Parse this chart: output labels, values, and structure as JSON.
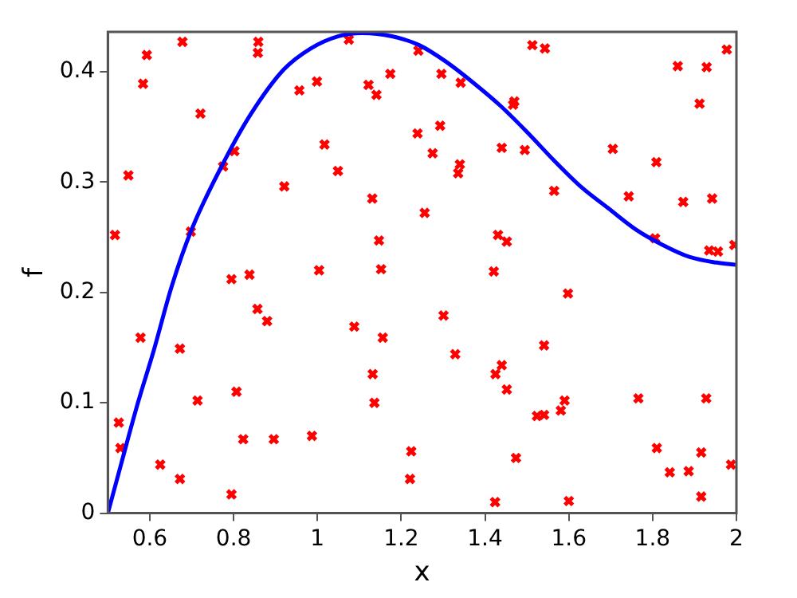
{
  "chart_data": {
    "type": "scatter",
    "xlabel": "x",
    "ylabel": "f",
    "xlim": [
      0.5,
      2
    ],
    "ylim": [
      0,
      0.436
    ],
    "xticks": [
      0.6,
      0.8,
      1,
      1.2,
      1.4,
      1.6,
      1.8,
      2
    ],
    "yticks": [
      0,
      0.1,
      0.2,
      0.3,
      0.4
    ],
    "grid": false,
    "legend": false,
    "series": [
      {
        "type": "line",
        "color": "#0000ff",
        "marker": "none",
        "line_style": "solid",
        "x": [
          0.5,
          0.532,
          0.571,
          0.61,
          0.652,
          0.7,
          0.778,
          0.842,
          0.92,
          0.984,
          1.049,
          1.107,
          1.178,
          1.243,
          1.307,
          1.372,
          1.437,
          1.501,
          1.566,
          1.631,
          1.695,
          1.76,
          1.824,
          1.889,
          1.953,
          1.999
        ],
        "values": [
          0,
          0.045,
          0.099,
          0.148,
          0.205,
          0.257,
          0.319,
          0.362,
          0.402,
          0.421,
          0.432,
          0.435,
          0.432,
          0.424,
          0.409,
          0.39,
          0.369,
          0.345,
          0.319,
          0.295,
          0.276,
          0.257,
          0.243,
          0.232,
          0.227,
          0.225
        ]
      },
      {
        "type": "scatter",
        "color": "#ff0000",
        "marker": "cross",
        "x": [
          0.517,
          0.549,
          0.584,
          0.593,
          0.678,
          0.721,
          0.698,
          0.775,
          0.802,
          0.795,
          0.838,
          0.859,
          0.858,
          0.921,
          0.957,
          0.999,
          1.004,
          1.017,
          1.049,
          1.075,
          1.122,
          1.141,
          1.174,
          1.131,
          1.147,
          1.152,
          1.239,
          1.241,
          1.256,
          1.296,
          1.342,
          1.293,
          1.275,
          1.34,
          1.336,
          1.513,
          1.543,
          1.47,
          1.467,
          1.44,
          1.495,
          1.565,
          1.431,
          1.452,
          1.421,
          1.705,
          1.743,
          1.809,
          1.806,
          1.86,
          1.929,
          1.912,
          1.873,
          1.942,
          1.935,
          1.956,
          1.977,
          1.995,
          0.578,
          0.526,
          0.53,
          0.625,
          0.672,
          0.672,
          0.714,
          0.857,
          0.88,
          0.807,
          0.823,
          0.896,
          0.795,
          0.987,
          1.088,
          1.156,
          1.132,
          1.136,
          1.224,
          1.221,
          1.598,
          1.301,
          1.329,
          1.541,
          1.44,
          1.425,
          1.452,
          1.59,
          1.581,
          1.524,
          1.541,
          1.766,
          1.928,
          1.81,
          1.916,
          1.841,
          1.886,
          1.987,
          1.916,
          1.474,
          1.424,
          1.6
        ],
        "values": [
          0.252,
          0.306,
          0.389,
          0.415,
          0.427,
          0.362,
          0.255,
          0.314,
          0.328,
          0.212,
          0.216,
          0.427,
          0.417,
          0.296,
          0.383,
          0.391,
          0.22,
          0.334,
          0.31,
          0.429,
          0.388,
          0.379,
          0.398,
          0.285,
          0.247,
          0.221,
          0.344,
          0.419,
          0.272,
          0.398,
          0.39,
          0.351,
          0.326,
          0.316,
          0.308,
          0.424,
          0.421,
          0.373,
          0.37,
          0.331,
          0.329,
          0.292,
          0.252,
          0.246,
          0.219,
          0.33,
          0.287,
          0.318,
          0.249,
          0.405,
          0.404,
          0.371,
          0.282,
          0.285,
          0.238,
          0.237,
          0.42,
          0.243,
          0.159,
          0.082,
          0.059,
          0.044,
          0.149,
          0.031,
          0.102,
          0.185,
          0.174,
          0.11,
          0.067,
          0.067,
          0.017,
          0.07,
          0.169,
          0.159,
          0.126,
          0.1,
          0.056,
          0.031,
          0.199,
          0.179,
          0.144,
          0.152,
          0.134,
          0.126,
          0.112,
          0.102,
          0.093,
          0.088,
          0.089,
          0.104,
          0.104,
          0.059,
          0.055,
          0.037,
          0.038,
          0.044,
          0.015,
          0.05,
          0.01,
          0.011
        ]
      }
    ]
  }
}
